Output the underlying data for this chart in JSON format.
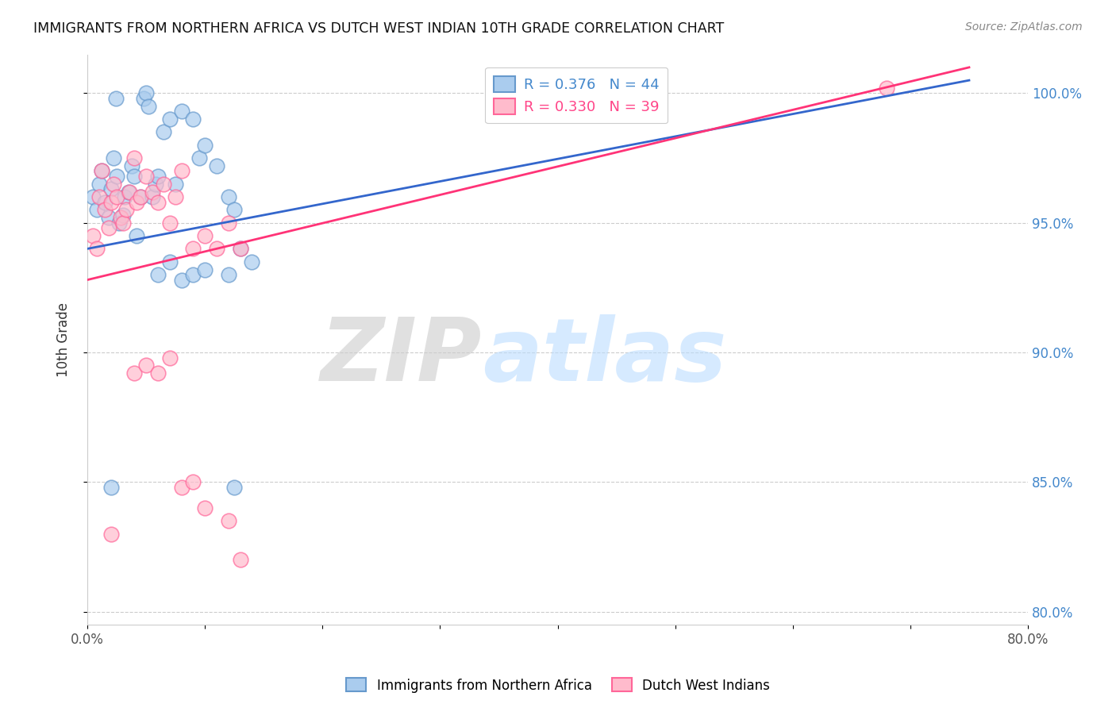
{
  "title": "IMMIGRANTS FROM NORTHERN AFRICA VS DUTCH WEST INDIAN 10TH GRADE CORRELATION CHART",
  "source": "Source: ZipAtlas.com",
  "ylabel": "10th Grade",
  "xlim": [
    0.0,
    0.8
  ],
  "ylim": [
    0.795,
    1.015
  ],
  "yticks": [
    0.8,
    0.85,
    0.9,
    0.95,
    1.0
  ],
  "yticklabels": [
    "80.0%",
    "85.0%",
    "90.0%",
    "95.0%",
    "100.0%"
  ],
  "blue_R": "0.376",
  "blue_N": "44",
  "pink_R": "0.330",
  "pink_N": "39",
  "legend_label_blue": "Immigrants from Northern Africa",
  "legend_label_pink": "Dutch West Indians",
  "blue_scatter_x": [
    0.005,
    0.008,
    0.01,
    0.012,
    0.015,
    0.018,
    0.02,
    0.022,
    0.024,
    0.025,
    0.027,
    0.03,
    0.032,
    0.035,
    0.038,
    0.04,
    0.042,
    0.045,
    0.048,
    0.05,
    0.052,
    0.055,
    0.058,
    0.06,
    0.065,
    0.07,
    0.075,
    0.08,
    0.09,
    0.095,
    0.1,
    0.11,
    0.12,
    0.125,
    0.13,
    0.14,
    0.06,
    0.07,
    0.08,
    0.09,
    0.1,
    0.12,
    0.125,
    0.02
  ],
  "blue_scatter_y": [
    0.96,
    0.955,
    0.965,
    0.97,
    0.958,
    0.952,
    0.963,
    0.975,
    0.998,
    0.968,
    0.95,
    0.953,
    0.96,
    0.962,
    0.972,
    0.968,
    0.945,
    0.96,
    0.998,
    1.0,
    0.995,
    0.96,
    0.965,
    0.968,
    0.985,
    0.99,
    0.965,
    0.993,
    0.99,
    0.975,
    0.98,
    0.972,
    0.96,
    0.955,
    0.94,
    0.935,
    0.93,
    0.935,
    0.928,
    0.93,
    0.932,
    0.93,
    0.848,
    0.848
  ],
  "pink_scatter_x": [
    0.005,
    0.008,
    0.01,
    0.012,
    0.015,
    0.018,
    0.02,
    0.022,
    0.025,
    0.028,
    0.03,
    0.033,
    0.036,
    0.04,
    0.042,
    0.045,
    0.05,
    0.055,
    0.06,
    0.065,
    0.07,
    0.075,
    0.08,
    0.09,
    0.1,
    0.11,
    0.12,
    0.13,
    0.04,
    0.05,
    0.06,
    0.07,
    0.08,
    0.09,
    0.1,
    0.12,
    0.13,
    0.68,
    0.02
  ],
  "pink_scatter_y": [
    0.945,
    0.94,
    0.96,
    0.97,
    0.955,
    0.948,
    0.958,
    0.965,
    0.96,
    0.952,
    0.95,
    0.955,
    0.962,
    0.975,
    0.958,
    0.96,
    0.968,
    0.962,
    0.958,
    0.965,
    0.95,
    0.96,
    0.97,
    0.94,
    0.945,
    0.94,
    0.95,
    0.94,
    0.892,
    0.895,
    0.892,
    0.898,
    0.848,
    0.85,
    0.84,
    0.835,
    0.82,
    1.002,
    0.83
  ],
  "blue_line_x": [
    0.0,
    0.75
  ],
  "blue_line_y": [
    0.94,
    1.005
  ],
  "pink_line_x": [
    0.0,
    0.75
  ],
  "pink_line_y": [
    0.928,
    1.01
  ],
  "blue_color": "#6699CC",
  "pink_color": "#FF6699",
  "blue_fill": "#AACCEE",
  "pink_fill": "#FFBBCC",
  "watermark_ZIP": "ZIP",
  "watermark_atlas": "atlas",
  "grid_color": "#CCCCCC",
  "background_color": "#FFFFFF",
  "zip_color": "#CCCCCC",
  "atlas_color": "#CCDDEF"
}
